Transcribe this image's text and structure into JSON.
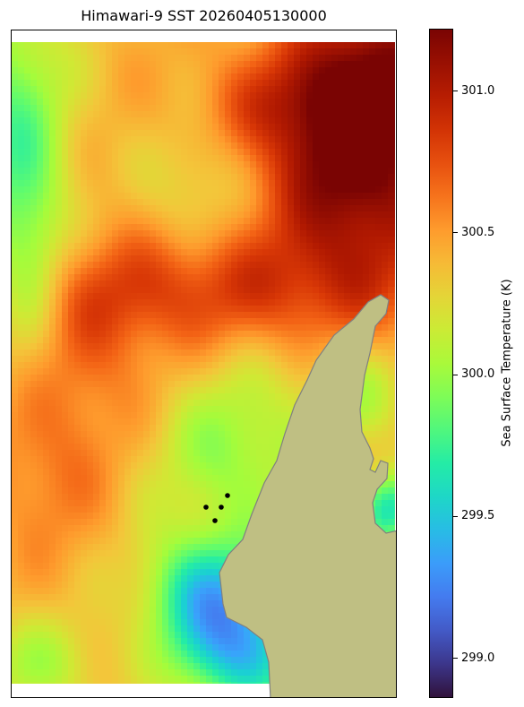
{
  "title": "Himawari-9 SST 20260405130000",
  "colorbar": {
    "label": "Sea Surface Temperature (K)",
    "colormap": "turbo",
    "vmin": 298.86,
    "vmax": 301.22,
    "ticks": [
      {
        "value": 299.0,
        "label": "299.0"
      },
      {
        "value": 299.5,
        "label": "299.5"
      },
      {
        "value": 300.0,
        "label": "300.0"
      },
      {
        "value": 300.5,
        "label": "300.5"
      },
      {
        "value": 301.0,
        "label": "301.0"
      }
    ]
  },
  "colors": {
    "land": "#bfbf83",
    "coastline": "#808080",
    "points": "#000000",
    "background": "#ffffff"
  }
}
